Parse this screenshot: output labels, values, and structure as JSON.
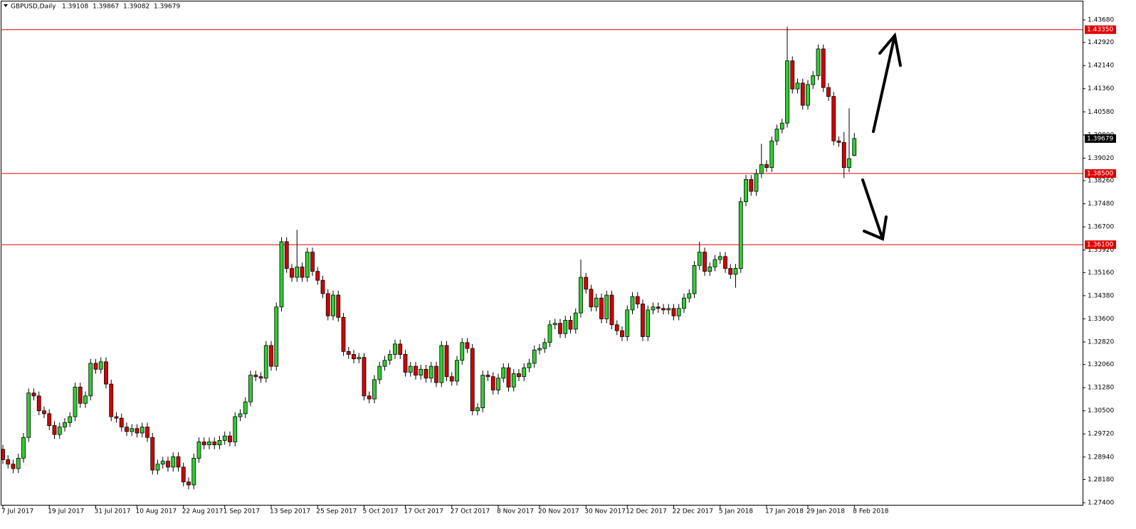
{
  "chart_data": {
    "type": "candlestick",
    "title": "GBPUSD,Daily",
    "categories": [
      "7 Jul 2017",
      null,
      null,
      null,
      null,
      null,
      null,
      null,
      null,
      "19 Jul 2017",
      null,
      null,
      null,
      null,
      null,
      null,
      null,
      null,
      "31 Jul 2017",
      null,
      null,
      null,
      null,
      null,
      null,
      null,
      "10 Aug 2017",
      null,
      null,
      null,
      null,
      null,
      null,
      null,
      null,
      "22 Aug 2017",
      null,
      null,
      null,
      null,
      null,
      null,
      null,
      "1 Sep 2017",
      null,
      null,
      null,
      null,
      null,
      null,
      null,
      null,
      "13 Sep 2017",
      null,
      null,
      null,
      null,
      null,
      null,
      null,
      null,
      "25 Sep 2017",
      null,
      null,
      null,
      null,
      null,
      null,
      null,
      null,
      "5 Oct 2017",
      null,
      null,
      null,
      null,
      null,
      null,
      null,
      "17 Oct 2017",
      null,
      null,
      null,
      null,
      null,
      null,
      null,
      null,
      "27 Oct 2017",
      null,
      null,
      null,
      null,
      null,
      null,
      null,
      null,
      "8 Nov 2017",
      null,
      null,
      null,
      null,
      null,
      null,
      null,
      "20 Nov 2017",
      null,
      null,
      null,
      null,
      null,
      null,
      null,
      null,
      "30 Nov 2017",
      null,
      null,
      null,
      null,
      null,
      null,
      null,
      "12 Dec 2017",
      null,
      null,
      null,
      null,
      null,
      null,
      null,
      null,
      "22 Dec 2017",
      null,
      null,
      null,
      null,
      null,
      null,
      null,
      null,
      "5 Jan 2018",
      null,
      null,
      null,
      null,
      null,
      null,
      null,
      null,
      "17 Jan 2018",
      null,
      null,
      null,
      null,
      null,
      null,
      null,
      "29 Jan 2018",
      null,
      null,
      null,
      null,
      null,
      null,
      null,
      null,
      "8 Feb 2018"
    ],
    "open": [
      1.292,
      1.2885,
      1.287,
      1.2855,
      1.289,
      1.296,
      1.311,
      1.31,
      1.305,
      1.304,
      1.3,
      1.297,
      1.2995,
      1.301,
      1.303,
      1.313,
      1.3075,
      1.31,
      1.321,
      1.319,
      1.3215,
      1.314,
      1.303,
      1.3025,
      1.2995,
      1.298,
      1.299,
      1.2975,
      1.2995,
      1.296,
      1.285,
      1.287,
      1.288,
      1.286,
      1.2895,
      1.286,
      1.281,
      1.28,
      1.289,
      1.2945,
      1.2935,
      1.2945,
      1.2935,
      1.295,
      1.2965,
      1.2945,
      1.303,
      1.304,
      1.308,
      1.317,
      1.3165,
      1.316,
      1.327,
      1.32,
      1.34,
      1.362,
      1.353,
      1.35,
      1.3535,
      1.35,
      1.3585,
      1.352,
      1.349,
      1.3445,
      1.337,
      1.344,
      1.3365,
      1.325,
      1.324,
      1.3225,
      1.323,
      1.31,
      1.309,
      1.3155,
      1.32,
      1.322,
      1.324,
      1.3275,
      1.324,
      1.318,
      1.32,
      1.317,
      1.319,
      1.316,
      1.32,
      1.3145,
      1.327,
      1.3165,
      1.315,
      1.322,
      1.328,
      1.326,
      1.305,
      1.306,
      1.317,
      1.3165,
      1.312,
      1.316,
      1.3195,
      1.313,
      1.3175,
      1.3165,
      1.3195,
      1.321,
      1.3255,
      1.326,
      1.328,
      1.334,
      1.3345,
      1.331,
      1.3355,
      1.3325,
      1.338,
      1.35,
      1.346,
      1.34,
      1.343,
      1.336,
      1.344,
      1.334,
      1.332,
      1.33,
      1.339,
      1.3435,
      1.341,
      1.33,
      1.339,
      1.34,
      1.3395,
      1.339,
      1.3395,
      1.337,
      1.3395,
      1.343,
      1.3445,
      1.354,
      1.3585,
      1.352,
      1.3535,
      1.356,
      1.357,
      1.353,
      1.351,
      1.353,
      1.3755,
      1.383,
      1.379,
      1.385,
      1.388,
      1.387,
      1.396,
      1.4,
      1.402,
      1.423,
      1.4135,
      1.4155,
      1.408,
      1.415,
      1.418,
      1.427,
      1.414,
      1.411,
      1.396,
      1.3955,
      1.387,
      1.39108
    ],
    "high": [
      1.2935,
      1.29,
      1.2885,
      1.2905,
      1.2975,
      1.3125,
      1.3125,
      1.3115,
      1.3065,
      1.3055,
      1.3015,
      1.301,
      1.3025,
      1.3045,
      1.3145,
      1.3145,
      1.3115,
      1.3225,
      1.3225,
      1.323,
      1.323,
      1.3155,
      1.3045,
      1.304,
      1.301,
      1.3005,
      1.3005,
      1.301,
      1.301,
      1.2975,
      1.2885,
      1.2895,
      1.2895,
      1.291,
      1.291,
      1.2875,
      1.2825,
      1.2905,
      1.296,
      1.296,
      1.296,
      1.296,
      1.2965,
      1.298,
      1.298,
      1.3045,
      1.3055,
      1.3095,
      1.3185,
      1.3185,
      1.318,
      1.3285,
      1.3285,
      1.3415,
      1.3635,
      1.3635,
      1.3545,
      1.366,
      1.355,
      1.36,
      1.36,
      1.3535,
      1.3505,
      1.346,
      1.3455,
      1.3455,
      1.338,
      1.3265,
      1.3255,
      1.3245,
      1.3245,
      1.3115,
      1.317,
      1.3215,
      1.3235,
      1.3255,
      1.329,
      1.329,
      1.3255,
      1.3215,
      1.3215,
      1.3205,
      1.3205,
      1.3215,
      1.3215,
      1.3285,
      1.3285,
      1.318,
      1.3235,
      1.3295,
      1.3295,
      1.3275,
      1.3075,
      1.3185,
      1.3185,
      1.318,
      1.3175,
      1.321,
      1.321,
      1.319,
      1.319,
      1.321,
      1.3225,
      1.327,
      1.3275,
      1.3295,
      1.3355,
      1.336,
      1.336,
      1.337,
      1.337,
      1.3395,
      1.356,
      1.3515,
      1.3475,
      1.3445,
      1.3445,
      1.3455,
      1.3455,
      1.3355,
      1.3335,
      1.3405,
      1.345,
      1.345,
      1.3425,
      1.3405,
      1.3415,
      1.3415,
      1.341,
      1.341,
      1.341,
      1.341,
      1.3445,
      1.346,
      1.3555,
      1.362,
      1.36,
      1.355,
      1.3575,
      1.3585,
      1.3585,
      1.3545,
      1.3545,
      1.377,
      1.3845,
      1.3845,
      1.3865,
      1.395,
      1.3895,
      1.3975,
      1.4015,
      1.4035,
      1.4345,
      1.4245,
      1.417,
      1.417,
      1.4165,
      1.4195,
      1.4285,
      1.4285,
      1.4155,
      1.4125,
      1.3975,
      1.399,
      1.407,
      1.39867
    ],
    "low": [
      1.287,
      1.2855,
      1.284,
      1.284,
      1.2875,
      1.2945,
      1.3085,
      1.3035,
      1.3025,
      1.2985,
      1.2955,
      1.2955,
      1.298,
      1.2995,
      1.3015,
      1.306,
      1.306,
      1.3085,
      1.3175,
      1.3175,
      1.3125,
      1.3015,
      1.301,
      1.298,
      1.2965,
      1.2965,
      1.296,
      1.296,
      1.2945,
      1.2835,
      1.2835,
      1.2855,
      1.2845,
      1.2845,
      1.2845,
      1.2795,
      1.2785,
      1.2785,
      1.2875,
      1.292,
      1.292,
      1.292,
      1.292,
      1.2935,
      1.293,
      1.293,
      1.3015,
      1.3025,
      1.3065,
      1.315,
      1.3145,
      1.3145,
      1.3185,
      1.3185,
      1.3385,
      1.3515,
      1.3485,
      1.3485,
      1.3485,
      1.3485,
      1.3505,
      1.3475,
      1.343,
      1.3355,
      1.3355,
      1.335,
      1.3235,
      1.3225,
      1.321,
      1.321,
      1.3085,
      1.3075,
      1.3075,
      1.314,
      1.3185,
      1.3205,
      1.3225,
      1.3225,
      1.3165,
      1.3165,
      1.3155,
      1.3155,
      1.3145,
      1.3145,
      1.313,
      1.313,
      1.315,
      1.3135,
      1.3135,
      1.3205,
      1.3245,
      1.3035,
      1.3035,
      1.3045,
      1.315,
      1.3105,
      1.3105,
      1.3145,
      1.3115,
      1.3115,
      1.315,
      1.315,
      1.318,
      1.3195,
      1.324,
      1.3245,
      1.3265,
      1.3325,
      1.3295,
      1.3295,
      1.331,
      1.331,
      1.3365,
      1.3445,
      1.3385,
      1.3385,
      1.3345,
      1.3345,
      1.3325,
      1.3305,
      1.3285,
      1.3285,
      1.3375,
      1.3395,
      1.3285,
      1.3285,
      1.3375,
      1.338,
      1.3375,
      1.3375,
      1.3355,
      1.3355,
      1.338,
      1.3415,
      1.343,
      1.3525,
      1.3505,
      1.3505,
      1.352,
      1.3545,
      1.3515,
      1.3495,
      1.3465,
      1.3515,
      1.374,
      1.3775,
      1.3775,
      1.3835,
      1.3855,
      1.3855,
      1.3945,
      1.3985,
      1.4005,
      1.412,
      1.412,
      1.4065,
      1.4065,
      1.4135,
      1.4165,
      1.4125,
      1.4095,
      1.3945,
      1.394,
      1.3835,
      1.3855,
      1.39082
    ],
    "close": [
      1.2885,
      1.287,
      1.2855,
      1.289,
      1.296,
      1.311,
      1.31,
      1.305,
      1.304,
      1.3,
      1.297,
      1.2995,
      1.301,
      1.303,
      1.313,
      1.3075,
      1.31,
      1.321,
      1.319,
      1.3215,
      1.314,
      1.303,
      1.3025,
      1.2995,
      1.298,
      1.299,
      1.2975,
      1.2995,
      1.296,
      1.285,
      1.287,
      1.288,
      1.286,
      1.2895,
      1.286,
      1.281,
      1.28,
      1.289,
      1.2945,
      1.2935,
      1.2945,
      1.2935,
      1.295,
      1.2965,
      1.2945,
      1.303,
      1.304,
      1.308,
      1.317,
      1.3165,
      1.316,
      1.327,
      1.32,
      1.34,
      1.362,
      1.353,
      1.35,
      1.3535,
      1.35,
      1.3585,
      1.352,
      1.349,
      1.3445,
      1.337,
      1.344,
      1.3365,
      1.325,
      1.324,
      1.3225,
      1.323,
      1.31,
      1.309,
      1.3155,
      1.32,
      1.322,
      1.324,
      1.3275,
      1.324,
      1.318,
      1.32,
      1.317,
      1.319,
      1.316,
      1.32,
      1.3145,
      1.327,
      1.3165,
      1.315,
      1.322,
      1.328,
      1.326,
      1.305,
      1.306,
      1.317,
      1.3165,
      1.312,
      1.316,
      1.3195,
      1.313,
      1.3175,
      1.3165,
      1.3195,
      1.321,
      1.3255,
      1.326,
      1.328,
      1.334,
      1.3345,
      1.331,
      1.3355,
      1.3325,
      1.338,
      1.35,
      1.346,
      1.34,
      1.343,
      1.336,
      1.344,
      1.334,
      1.332,
      1.33,
      1.339,
      1.3435,
      1.341,
      1.33,
      1.339,
      1.34,
      1.3395,
      1.339,
      1.3395,
      1.337,
      1.3395,
      1.343,
      1.3445,
      1.354,
      1.3585,
      1.352,
      1.3535,
      1.356,
      1.357,
      1.353,
      1.351,
      1.353,
      1.3755,
      1.383,
      1.379,
      1.385,
      1.388,
      1.387,
      1.396,
      1.4,
      1.402,
      1.423,
      1.4135,
      1.4155,
      1.408,
      1.415,
      1.418,
      1.427,
      1.414,
      1.411,
      1.396,
      1.3955,
      1.387,
      1.39,
      1.39679
    ],
    "up_color": "#32cd32",
    "down_color": "#d40000",
    "level_color": "#e00000",
    "ylim": [
      1.44351,
      1.27304
    ],
    "yticks": [
      {
        "value": 1.4368,
        "label": "1.43680"
      },
      {
        "value": 1.4292,
        "label": "1.42920"
      },
      {
        "value": 1.4214,
        "label": "1.42140"
      },
      {
        "value": 1.4136,
        "label": "1.41360"
      },
      {
        "value": 1.4058,
        "label": "1.40580"
      },
      {
        "value": 1.398,
        "label": "1.39800"
      },
      {
        "value": 1.3902,
        "label": "1.39020"
      },
      {
        "value": 1.3826,
        "label": "1.38260"
      },
      {
        "value": 1.3748,
        "label": "1.37480"
      },
      {
        "value": 1.367,
        "label": "1.36700"
      },
      {
        "value": 1.3592,
        "label": "1.35920"
      },
      {
        "value": 1.3516,
        "label": "1.35160"
      },
      {
        "value": 1.3438,
        "label": "1.34380"
      },
      {
        "value": 1.336,
        "label": "1.33600"
      },
      {
        "value": 1.3282,
        "label": "1.32820"
      },
      {
        "value": 1.3206,
        "label": "1.32060"
      },
      {
        "value": 1.3128,
        "label": "1.31280"
      },
      {
        "value": 1.305,
        "label": "1.30500"
      },
      {
        "value": 1.2972,
        "label": "1.29720"
      },
      {
        "value": 1.2894,
        "label": "1.28940"
      },
      {
        "value": 1.2818,
        "label": "1.28180"
      },
      {
        "value": 1.274,
        "label": "1.27400"
      }
    ],
    "levels": [
      {
        "value": 1.4335,
        "label": "1.43350"
      },
      {
        "value": 1.385,
        "label": "1.38500"
      },
      {
        "value": 1.361,
        "label": "1.36100"
      }
    ]
  }
}
